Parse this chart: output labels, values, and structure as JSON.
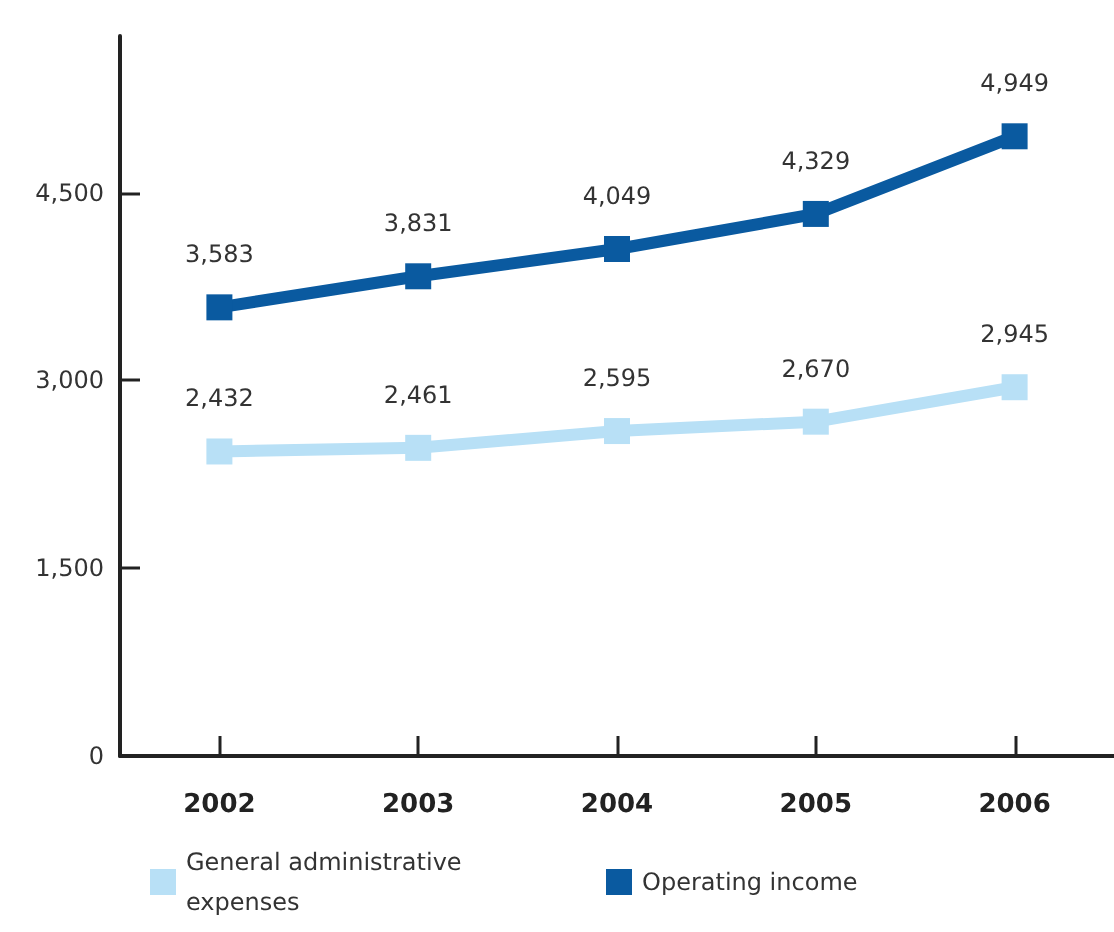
{
  "chart_data": {
    "type": "line",
    "categories": [
      "2002",
      "2003",
      "2004",
      "2005",
      "2006"
    ],
    "series": [
      {
        "name": "General administrative expenses",
        "color": "#b8e0f6",
        "values": [
          2432,
          2461,
          2595,
          2670,
          2945
        ],
        "value_labels": [
          "2,432",
          "2,461",
          "2,595",
          "2,670",
          "2,945"
        ]
      },
      {
        "name": "Operating income",
        "color": "#0a5aa0",
        "values": [
          3583,
          3831,
          4049,
          4329,
          4949
        ],
        "value_labels": [
          "3,583",
          "3,831",
          "4,049",
          "4,329",
          "4,949"
        ]
      }
    ],
    "ylim": [
      0,
      5750
    ],
    "yticks": [
      0,
      {
        "value": 1500,
        "label": "1,500"
      },
      {
        "value": 3000,
        "label": "3,000"
      },
      {
        "value": 4500,
        "label": "4,500"
      }
    ],
    "marker": "square",
    "line_style": "solid",
    "grid": false,
    "legend": "bottom"
  }
}
